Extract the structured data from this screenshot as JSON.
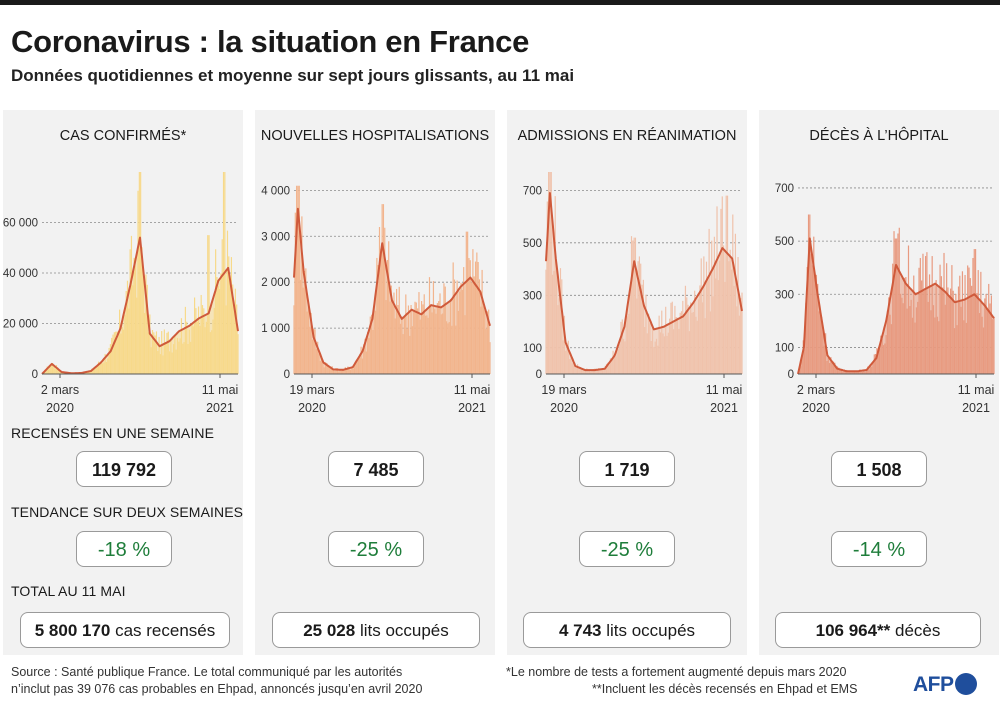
{
  "title": "Coronavirus : la situation en France",
  "subtitle": "Données quotidiennes et moyenne sur sept jours glissants, au 11 mai",
  "labels": {
    "weekly": "RECENSÉS EN UNE SEMAINE",
    "trend": "TENDANCE SUR DEUX SEMAINES",
    "total": "TOTAL AU 11 MAI"
  },
  "panels": [
    {
      "title": "CAS CONFIRMÉS*",
      "weekly": "119 792",
      "trend": "-18 %",
      "total_value": "5 800 170",
      "total_unit": " cas recensés"
    },
    {
      "title": "NOUVELLES HOSPITALISATIONS",
      "weekly": "7 485",
      "trend": "-25 %",
      "total_value": "25 028",
      "total_unit": " lits occupés"
    },
    {
      "title": "ADMISSIONS EN RÉANIMATION",
      "weekly": "1 719",
      "trend": "-25 %",
      "total_value": "4 743",
      "total_unit": " lits occupés"
    },
    {
      "title": "DÉCÈS À L’HÔPITAL",
      "weekly": "1 508",
      "trend": "-14 %",
      "total_value": "106 964**",
      "total_unit": " décès"
    }
  ],
  "footer": {
    "source_1": "Source : Santé publique France. Le total communiqué par les autorités",
    "source_2": "n’inclut pas 39 076 cas probables en Ehpad, annoncés jusqu’en avril 2020",
    "note_1": "*Le nombre de tests a fortement augmenté depuis mars 2020",
    "note_2": "**Incluent les décès recensés en Ehpad et EMS",
    "logo": "AFP"
  },
  "colors": {
    "cases_fill": "#f7d98a",
    "hosp_fill": "#f2b48d",
    "rea_fill": "#f0c2ab",
    "deaths_fill": "#e89a80",
    "line": "#cf5a3b",
    "trend_green": "#1e7d3a"
  },
  "chart_data": [
    {
      "type": "area",
      "title": "CAS CONFIRMÉS*",
      "series_name": "moyenne sur sept jours",
      "x_start": "2 mars 2020",
      "x_end": "11 mai 2021",
      "x_tick_labels": [
        [
          "2 mars",
          "2020"
        ],
        [
          "11 mai",
          "2021"
        ]
      ],
      "y_ticks": [
        0,
        20000,
        40000,
        60000
      ],
      "y_tick_labels": [
        "0",
        "20 000",
        "40 000",
        "60 000"
      ],
      "ylim": [
        0,
        80000
      ],
      "x": [
        0,
        5,
        10,
        15,
        20,
        25,
        30,
        35,
        40,
        45,
        50,
        55,
        60,
        65,
        70,
        75,
        80,
        85,
        90,
        95,
        100
      ],
      "values": [
        0,
        4000,
        800,
        300,
        400,
        1200,
        4500,
        9000,
        18000,
        35000,
        54000,
        16000,
        11000,
        13000,
        17000,
        19000,
        22000,
        24000,
        37000,
        42000,
        17000
      ],
      "daily_peaks": [
        {
          "x": 50,
          "y": 86000
        },
        {
          "x": 85,
          "y": 55000
        },
        {
          "x": 93,
          "y": 84000
        }
      ]
    },
    {
      "type": "area",
      "title": "NOUVELLES HOSPITALISATIONS",
      "series_name": "moyenne sur sept jours",
      "x_start": "19 mars 2020",
      "x_end": "11 mai 2021",
      "x_tick_labels": [
        [
          "19 mars",
          "2020"
        ],
        [
          "11 mai",
          "2021"
        ]
      ],
      "y_ticks": [
        0,
        1000,
        2000,
        3000,
        4000
      ],
      "y_tick_labels": [
        "0",
        "1 000",
        "2 000",
        "3 000",
        "4 000"
      ],
      "ylim": [
        0,
        4400
      ],
      "x": [
        0,
        2,
        5,
        10,
        15,
        20,
        25,
        30,
        35,
        40,
        45,
        50,
        55,
        60,
        65,
        70,
        75,
        80,
        85,
        90,
        95,
        100
      ],
      "values": [
        2100,
        3600,
        2200,
        800,
        250,
        100,
        90,
        150,
        500,
        1200,
        2850,
        1600,
        1200,
        1400,
        1300,
        1500,
        1450,
        1600,
        1900,
        2100,
        1800,
        1050
      ],
      "daily_peaks": [
        {
          "x": 2,
          "y": 4100
        },
        {
          "x": 45,
          "y": 3700
        },
        {
          "x": 88,
          "y": 3100
        }
      ]
    },
    {
      "type": "area",
      "title": "ADMISSIONS EN RÉANIMATION",
      "series_name": "moyenne sur sept jours",
      "x_start": "19 mars 2020",
      "x_end": "11 mai 2021",
      "x_tick_labels": [
        [
          "19 mars",
          "2020"
        ],
        [
          "11 mai",
          "2021"
        ]
      ],
      "y_ticks": [
        0,
        100,
        300,
        500,
        700
      ],
      "y_tick_labels": [
        "0",
        "100",
        "300",
        "500",
        "700"
      ],
      "ylim": [
        0,
        770
      ],
      "x": [
        0,
        2,
        5,
        10,
        15,
        20,
        25,
        30,
        35,
        40,
        45,
        50,
        55,
        60,
        65,
        70,
        75,
        80,
        85,
        90,
        95,
        100
      ],
      "values": [
        430,
        690,
        440,
        120,
        30,
        15,
        15,
        20,
        70,
        180,
        430,
        260,
        170,
        180,
        200,
        220,
        270,
        330,
        400,
        480,
        440,
        240
      ],
      "daily_peaks": [
        {
          "x": 2,
          "y": 770
        },
        {
          "x": 45,
          "y": 520
        },
        {
          "x": 92,
          "y": 680
        }
      ]
    },
    {
      "type": "area",
      "title": "DÉCÈS À L’HÔPITAL",
      "series_name": "moyenne sur sept jours",
      "x_start": "2 mars 2020",
      "x_end": "11 mai 2021",
      "x_tick_labels": [
        [
          "2 mars",
          "2020"
        ],
        [
          "11 mai",
          "2021"
        ]
      ],
      "y_ticks": [
        0,
        100,
        300,
        500,
        700
      ],
      "y_tick_labels": [
        "0",
        "100",
        "300",
        "500",
        "700"
      ],
      "ylim": [
        0,
        760
      ],
      "x": [
        0,
        3,
        6,
        10,
        15,
        20,
        25,
        30,
        35,
        40,
        45,
        50,
        55,
        60,
        65,
        70,
        75,
        80,
        85,
        90,
        95,
        100
      ],
      "values": [
        0,
        100,
        510,
        300,
        70,
        20,
        10,
        10,
        15,
        60,
        200,
        410,
        340,
        300,
        320,
        340,
        310,
        270,
        280,
        300,
        260,
        210
      ],
      "daily_peaks": [
        {
          "x": 6,
          "y": 600
        },
        {
          "x": 50,
          "y": 510
        },
        {
          "x": 90,
          "y": 470
        }
      ]
    }
  ]
}
